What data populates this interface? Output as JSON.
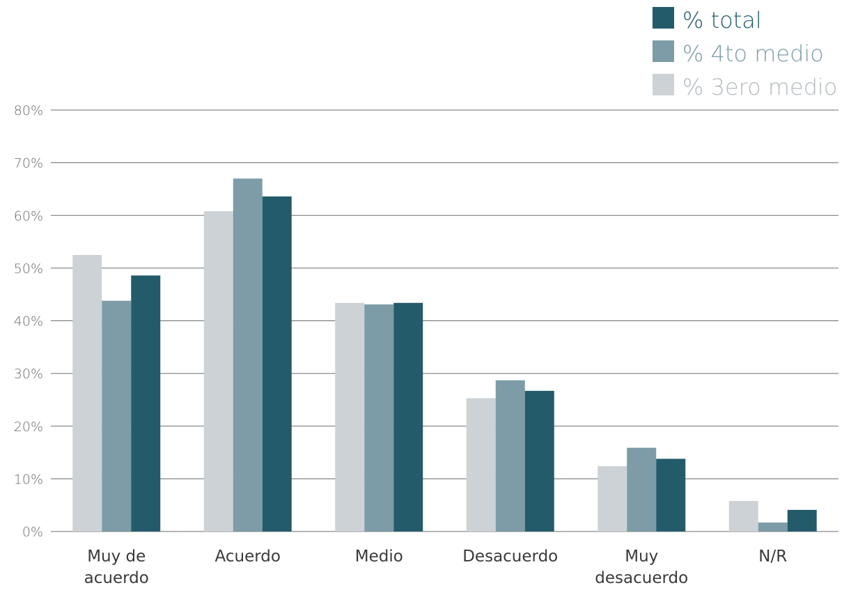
{
  "chart_data": {
    "type": "bar",
    "categories": [
      [
        "Muy de",
        "acuerdo"
      ],
      [
        "Acuerdo"
      ],
      [
        "Medio"
      ],
      [
        "Desacuerdo"
      ],
      [
        "Muy",
        "desacuerdo"
      ],
      [
        "N/R"
      ]
    ],
    "series": [
      {
        "name": "% 3ero medio",
        "color": "#cdd2d6",
        "values": [
          52.5,
          60.8,
          43.4,
          25.3,
          12.4,
          5.8
        ]
      },
      {
        "name": "% 4to medio",
        "color": "#7d9ca7",
        "values": [
          43.8,
          67.0,
          43.1,
          28.7,
          15.9,
          1.7
        ]
      },
      {
        "name": "% total",
        "color": "#245b6b",
        "values": [
          48.6,
          63.6,
          43.4,
          26.7,
          13.8,
          4.1
        ]
      }
    ],
    "legend_order": [
      2,
      1,
      0
    ],
    "legend_position": "top-right",
    "ylim": [
      0,
      80
    ],
    "yticks": [
      "0%",
      "10%",
      "20%",
      "30%",
      "40%",
      "50%",
      "60%",
      "70%",
      "80%"
    ],
    "grid": true,
    "title": "",
    "xlabel": "",
    "ylabel": ""
  }
}
